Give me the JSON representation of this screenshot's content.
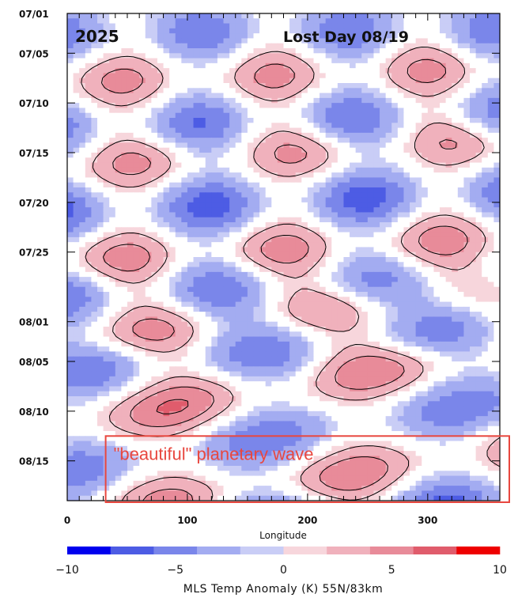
{
  "chart_data": {
    "type": "heatmap",
    "year": "2025",
    "info_label": "Lost Day 08/19",
    "xlabel": "Longitude",
    "x_range": [
      0,
      360
    ],
    "x_ticks": [
      0,
      100,
      200,
      300
    ],
    "x_tick_labels": [
      "0",
      "100",
      "200",
      "300"
    ],
    "y_dates": [
      "07/01",
      "07/05",
      "07/10",
      "07/15",
      "07/20",
      "07/25",
      "08/01",
      "08/05",
      "08/10",
      "08/15"
    ],
    "y_day_index": [
      1,
      5,
      10,
      15,
      20,
      25,
      32,
      36,
      41,
      46
    ],
    "y_range_days": [
      1,
      50
    ],
    "colorbar": {
      "title": "MLS Temp Anomaly (K) 55N/83km",
      "range": [
        -10,
        10
      ],
      "tick_values": [
        -10,
        -5,
        0,
        5,
        10
      ],
      "tick_labels": [
        "−10",
        "−5",
        "0",
        "5",
        "10"
      ],
      "colors": [
        "#0000ee",
        "#4d5ce4",
        "#7a86ea",
        "#a3acf1",
        "#c9cdf6",
        "#ffffff",
        "#f7d6dc",
        "#f0b1bc",
        "#e88b99",
        "#e05c6c",
        "#ee0000"
      ]
    },
    "bands": [
      {
        "sign": "negative",
        "amp": 6.0,
        "t_at_0": 3.0,
        "t_at_360": 2.6
      },
      {
        "sign": "positive",
        "amp": 5.0,
        "t_at_0": 8.0,
        "t_at_360": 6.5
      },
      {
        "sign": "negative",
        "amp": 6.5,
        "t_at_0": 12.5,
        "t_at_360": 11.0
      },
      {
        "sign": "positive",
        "amp": 5.0,
        "t_at_0": 16.5,
        "t_at_360": 13.5
      },
      {
        "sign": "negative",
        "amp": 7.5,
        "t_at_0": 21.0,
        "t_at_360": 19.0
      },
      {
        "sign": "positive",
        "amp": 5.5,
        "t_at_0": 26.0,
        "t_at_360": 23.5
      },
      {
        "sign": "negative",
        "amp": 6.5,
        "t_at_0": 29.5,
        "t_at_360": 27.5
      },
      {
        "sign": "positive",
        "amp": 5.5,
        "t_at_0": 34.0,
        "t_at_360": 28.5
      },
      {
        "sign": "negative",
        "amp": 6.5,
        "t_at_0": 37.0,
        "t_at_360": 32.5
      },
      {
        "sign": "positive",
        "amp": 6.5,
        "t_at_0": 42.5,
        "t_at_360": 34.5
      },
      {
        "sign": "negative",
        "amp": 6.0,
        "t_at_0": 47.0,
        "t_at_360": 40.0
      },
      {
        "sign": "positive",
        "amp": 6.0,
        "t_at_0": 52.0,
        "t_at_360": 45.0
      },
      {
        "sign": "negative",
        "amp": 7.0,
        "t_at_0": 54.0,
        "t_at_360": 50.0
      }
    ],
    "annotations": [
      {
        "text": "\"beautiful\" planetary wave",
        "color": "#e8473f",
        "lon_range": [
          30,
          360
        ],
        "day_range": [
          43.5,
          50
        ]
      }
    ]
  }
}
